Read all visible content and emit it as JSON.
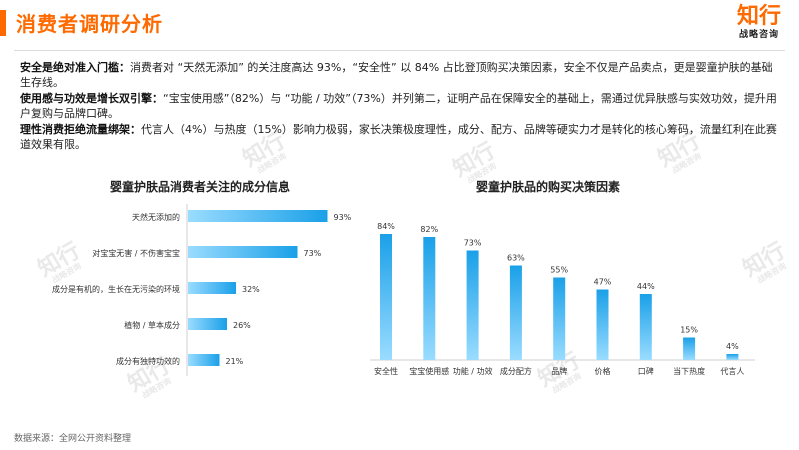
{
  "header": {
    "title": "消费者调研分析",
    "logo_main": "知行",
    "logo_sub": "战略咨询"
  },
  "bullets": [
    {
      "lead": "安全是绝对准入门槛：",
      "text": "消费者对 “天然无添加” 的关注度高达 93%，“安全性” 以 84% 占比登顶购买决策因素，安全不仅是产品卖点，更是婴童护肤的基础生存线。"
    },
    {
      "lead": "使用感与功效是增长双引擎：",
      "text": "“宝宝使用感”（82%）与 “功能 / 功效”（73%）并列第二，证明产品在保障安全的基础上，需通过优异肤感与实效功效，提升用户复购与品牌口碑。"
    },
    {
      "lead": "理性消费拒绝流量绑架：",
      "text": "代言人（4%）与热度（15%）影响力极弱，家长决策极度理性，成分、配方、品牌等硬实力才是转化的核心筹码，流量红利在此赛道效果有限。"
    }
  ],
  "watermark": {
    "main": "知行",
    "sub": "战略咨询"
  },
  "source": "数据来源：全网公开资料整理",
  "chart_data": [
    {
      "type": "bar",
      "orientation": "horizontal",
      "title": "婴童护肤品消费者关注的成分信息",
      "categories": [
        "天然无添加的",
        "对宝宝无害 / 不伤害宝宝",
        "成分是有机的，生长在无污染的环境",
        "植物 / 草本成分",
        "成分有独特功效的"
      ],
      "values": [
        93,
        73,
        32,
        26,
        21
      ],
      "value_labels": [
        "93%",
        "73%",
        "32%",
        "26%",
        "21%"
      ],
      "unit": "%",
      "xlim": [
        0,
        100
      ],
      "grid": false,
      "colors": [
        "#1aa0e8",
        "#9adcff"
      ]
    },
    {
      "type": "bar",
      "orientation": "vertical",
      "title": "婴童护肤品的购买决策因素",
      "categories": [
        "安全性",
        "宝宝使用感",
        "功能 / 功效",
        "成分配方",
        "品牌",
        "价格",
        "口碑",
        "当下热度",
        "代言人"
      ],
      "values": [
        84,
        82,
        73,
        63,
        55,
        47,
        44,
        15,
        4
      ],
      "value_labels": [
        "84%",
        "82%",
        "73%",
        "63%",
        "55%",
        "47%",
        "44%",
        "15%",
        "4%"
      ],
      "unit": "%",
      "ylim": [
        0,
        100
      ],
      "grid": false,
      "colors": [
        "#1aa0e8",
        "#9adcff"
      ]
    }
  ]
}
